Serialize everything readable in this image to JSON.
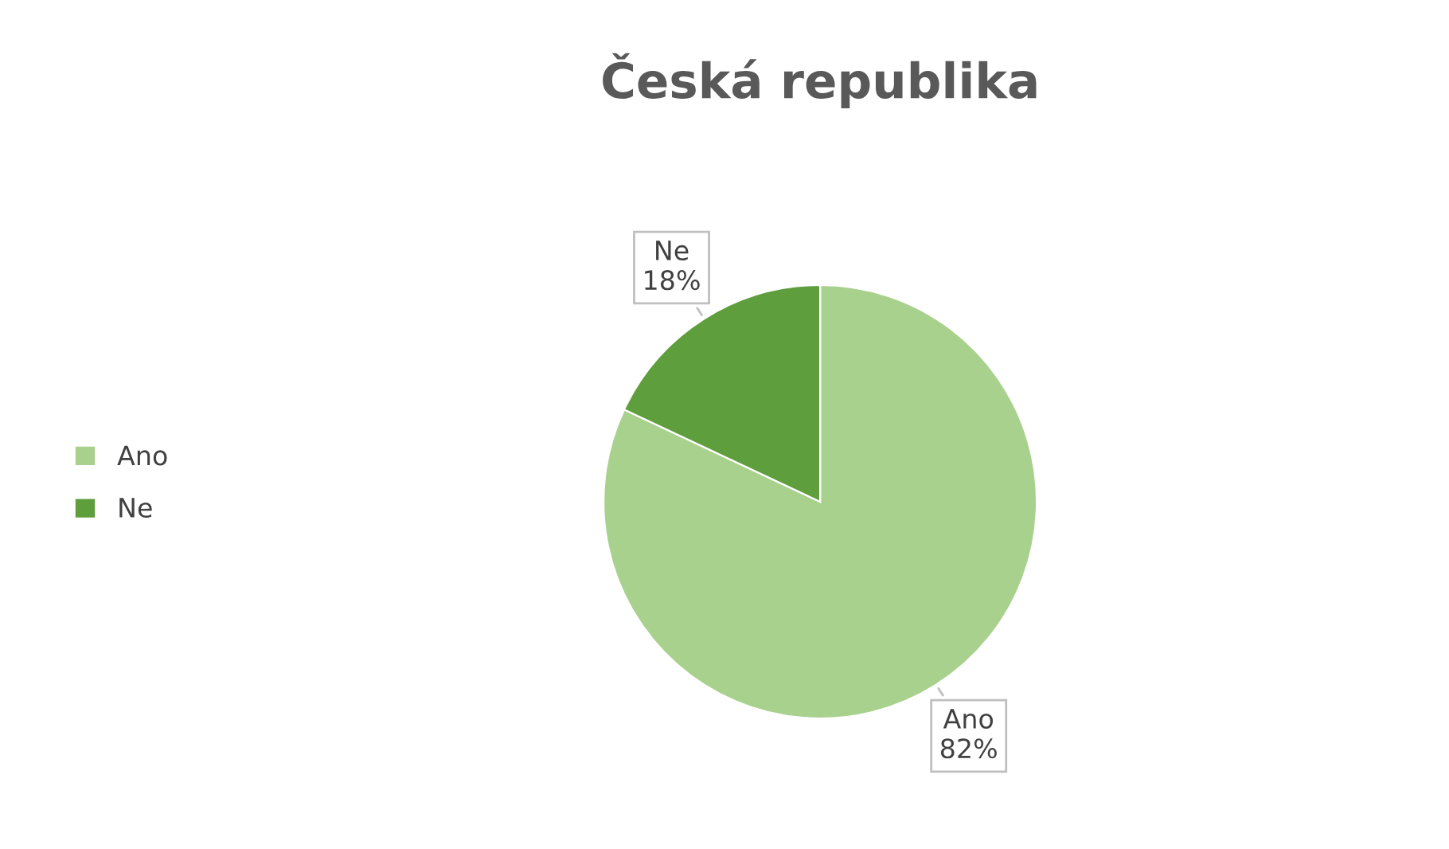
{
  "chart_data": {
    "type": "pie",
    "title": "Česká republika",
    "categories": [
      "Ano",
      "Ne"
    ],
    "values": [
      82,
      18
    ],
    "value_labels": [
      "82%",
      "18%"
    ],
    "colors": [
      "#a9d18e",
      "#5f9e3c"
    ],
    "legend": "left"
  }
}
